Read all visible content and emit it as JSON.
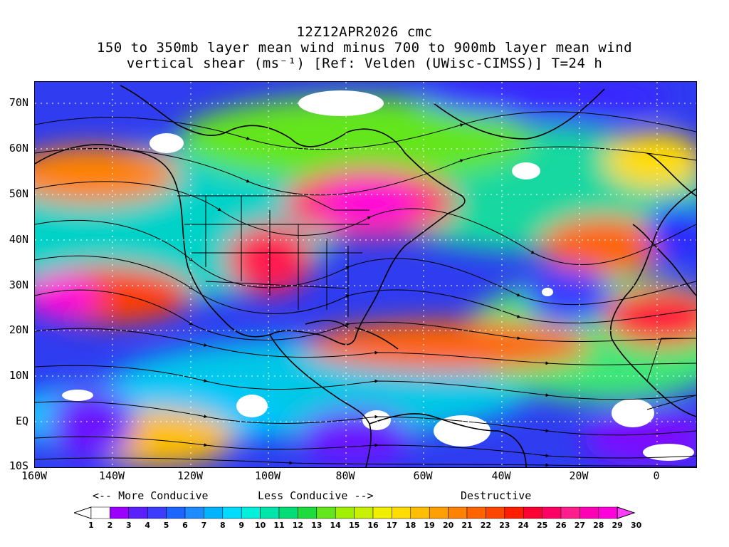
{
  "title": {
    "line1": "12Z12APR2026 cmc",
    "line2": "150 to 350mb layer mean wind minus 700 to 900mb layer mean wind",
    "line3": "vertical shear (ms⁻¹) [Ref: Velden (UWisc-CIMSS)] T=24 h"
  },
  "map": {
    "lat_labels": [
      "70N",
      "60N",
      "50N",
      "40N",
      "30N",
      "20N",
      "10N",
      "EQ",
      "10S"
    ],
    "lon_labels": [
      "160W",
      "140W",
      "120W",
      "100W",
      "80W",
      "60W",
      "40W",
      "20W",
      "0"
    ],
    "lat_values": [
      70,
      60,
      50,
      40,
      30,
      20,
      10,
      0,
      -10
    ],
    "lon_values": [
      -160,
      -140,
      -120,
      -100,
      -80,
      -60,
      -40,
      -20,
      0
    ],
    "extent": {
      "lon_min": -160,
      "lon_max": 10,
      "lat_min": -10,
      "lat_max": 75
    }
  },
  "legend_text": {
    "more_conducive": "<-- More Conducive",
    "less_conducive": "Less Conducive -->",
    "destructive": "Destructive"
  },
  "colorbar": {
    "labels": [
      "1",
      "2",
      "3",
      "4",
      "5",
      "6",
      "7",
      "8",
      "9",
      "10",
      "11",
      "12",
      "13",
      "14",
      "15",
      "16",
      "17",
      "18",
      "19",
      "20",
      "21",
      "22",
      "23",
      "24",
      "25",
      "26",
      "27",
      "28",
      "29",
      "30"
    ],
    "colors": [
      "#ffffff",
      "#9b00ff",
      "#5a1eff",
      "#3c3cff",
      "#1e64ff",
      "#1e8cff",
      "#00b4ff",
      "#00dcff",
      "#00f0dc",
      "#00e6aa",
      "#00dc78",
      "#1edc3c",
      "#64e61e",
      "#a0f000",
      "#c8f000",
      "#f0f000",
      "#ffdc00",
      "#ffbe00",
      "#ffa000",
      "#ff8200",
      "#ff6400",
      "#ff4600",
      "#ff1e00",
      "#ff0032",
      "#ff0064",
      "#ff1e8c",
      "#ff00b4",
      "#ff00dc",
      "#ff3cff"
    ],
    "unit": "ms⁻¹"
  }
}
